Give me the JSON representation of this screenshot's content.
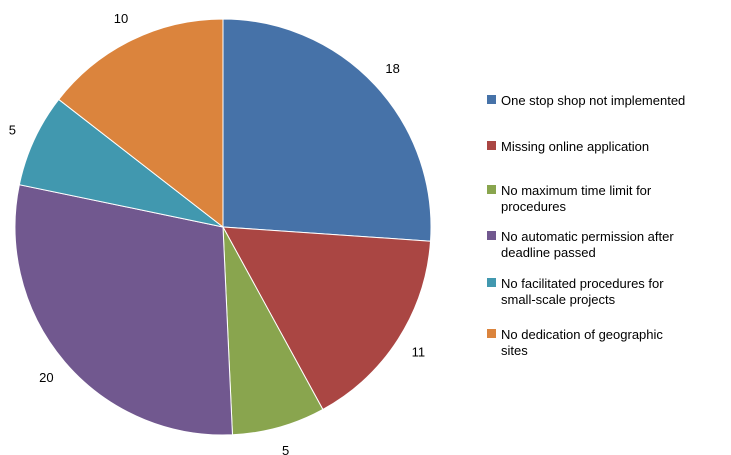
{
  "chart_data": {
    "type": "pie",
    "title": "",
    "slices": [
      {
        "label": "One stop shop not implemented",
        "value": 18,
        "color": "#4672A8"
      },
      {
        "label": "Missing online application",
        "value": 11,
        "color": "#AA4643"
      },
      {
        "label": "No maximum time limit for procedures",
        "value": 5,
        "color": "#89A54E"
      },
      {
        "label": "No automatic permission after deadline passed",
        "value": 20,
        "color": "#71588F"
      },
      {
        "label": "No facilitated procedures for small-scale projects",
        "value": 5,
        "color": "#4198AF"
      },
      {
        "label": "No dedication of geographic sites",
        "value": 10,
        "color": "#DB843D"
      }
    ],
    "legend_position": "right",
    "data_labels": "outside"
  }
}
